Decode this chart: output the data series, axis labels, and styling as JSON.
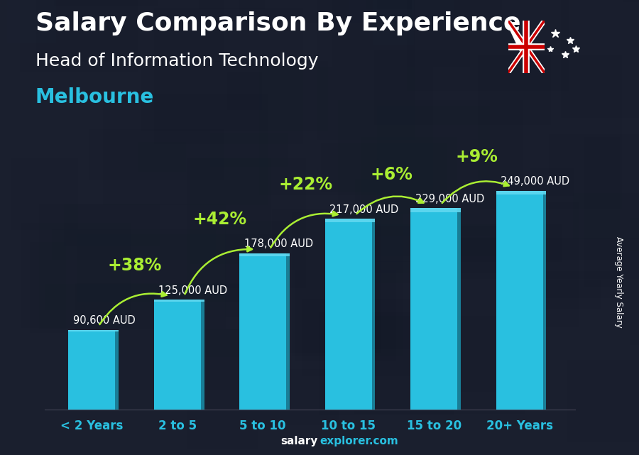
{
  "categories": [
    "< 2 Years",
    "2 to 5",
    "5 to 10",
    "10 to 15",
    "15 to 20",
    "20+ Years"
  ],
  "values": [
    90600,
    125000,
    178000,
    217000,
    229000,
    249000
  ],
  "labels": [
    "90,600 AUD",
    "125,000 AUD",
    "178,000 AUD",
    "217,000 AUD",
    "229,000 AUD",
    "249,000 AUD"
  ],
  "pct_changes": [
    null,
    "+38%",
    "+42%",
    "+22%",
    "+6%",
    "+9%"
  ],
  "bar_color": "#29C0E0",
  "bar_edge_color": "#1AAFCC",
  "bar_right_color": "#1A90AA",
  "bar_top_color": "#60D8F0",
  "bg_color": "#1a1f2e",
  "title": "Salary Comparison By Experience",
  "subtitle": "Head of Information Technology",
  "city": "Melbourne",
  "ylabel": "Average Yearly Salary",
  "footer_bold": "salary",
  "footer_normal": "explorer.com",
  "title_fontsize": 26,
  "subtitle_fontsize": 18,
  "city_fontsize": 20,
  "label_fontsize": 10.5,
  "pct_fontsize": 17,
  "cat_fontsize": 12,
  "footer_fontsize": 11,
  "ylabel_fontsize": 8.5,
  "ylim": [
    0,
    290000
  ],
  "pct_color": "#AAEE33",
  "label_color": "#FFFFFF",
  "cat_color": "#29C0E0",
  "title_color": "#FFFFFF",
  "subtitle_color": "#FFFFFF",
  "city_color": "#29C0E0"
}
